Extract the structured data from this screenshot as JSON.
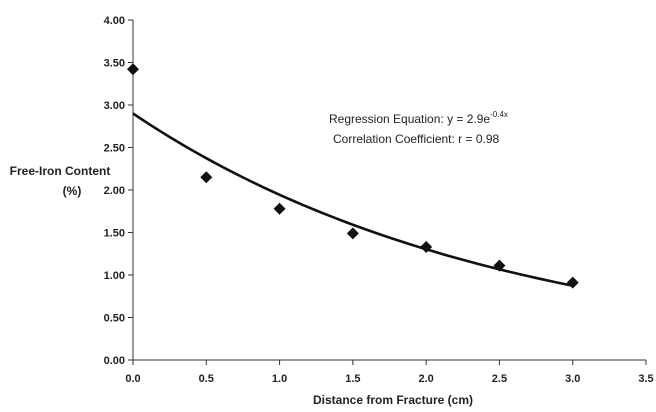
{
  "chart_data": {
    "type": "scatter",
    "title": "",
    "xlabel": "Distance from Fracture (cm)",
    "ylabel_line1": "Free-Iron Content",
    "ylabel_line2": "(%)",
    "xlim": [
      0,
      3.5
    ],
    "ylim": [
      0,
      4
    ],
    "x_ticks": [
      "0.0",
      "0.5",
      "1.0",
      "1.5",
      "2.0",
      "2.5",
      "3.0",
      "3.5"
    ],
    "y_ticks": [
      "0.00",
      "0.50",
      "1.00",
      "1.50",
      "2.00",
      "2.50",
      "3.00",
      "3.50",
      "4.00"
    ],
    "grid": false,
    "series": [
      {
        "marker": "diamond",
        "color": "#111111",
        "x": [
          0.0,
          0.5,
          1.0,
          1.5,
          2.0,
          2.5,
          3.0
        ],
        "y": [
          3.42,
          2.15,
          1.78,
          1.49,
          1.33,
          1.11,
          0.91
        ]
      }
    ],
    "fit": {
      "type": "exponential",
      "a": 2.9,
      "b": -0.4,
      "x_range": [
        0,
        3
      ],
      "color": "#111111"
    },
    "annotations": {
      "equation_prefix": "Regression Equation: y = 2.9e",
      "equation_exponent": "-0.4x",
      "correlation": "Correlation Coefficient: r = 0.98"
    }
  }
}
